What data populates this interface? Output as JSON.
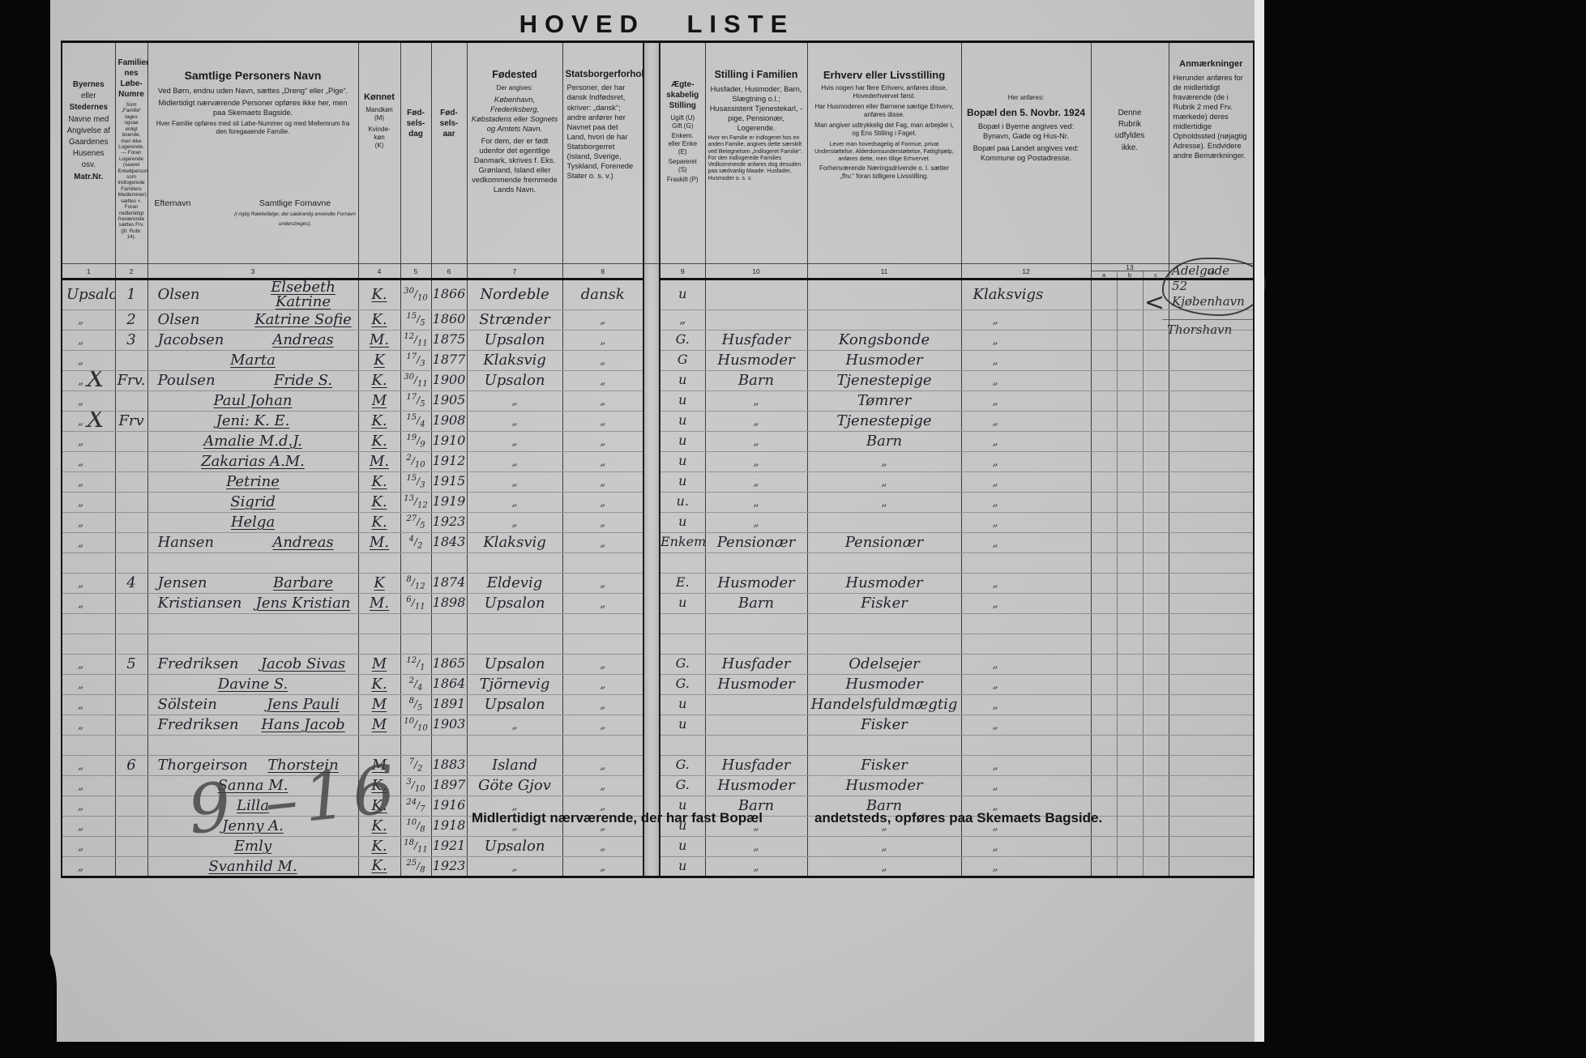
{
  "title": "HOVED LISTE",
  "colors": {
    "paper": "#c5c5c5",
    "ink": "#1b1b1b",
    "handwriting": "#23242c",
    "pencil": "#4f4f4f"
  },
  "h": {
    "place": {
      "lines": [
        "Byernes",
        "eller",
        "Stedernes",
        "Navne med",
        "Angivelse af",
        "Gaardenes",
        "Husenes osv.",
        "Matr.Nr."
      ]
    },
    "fam": {
      "title_lines": [
        "Familier-",
        "nes",
        "Løbe-",
        "Numre"
      ],
      "note": "Som „Familie“ tages ogsaa enligt boende, men ikke Logerende. — Foran Logerende (saavel Enkeltpersoner som indlogerede Familiers Medlemmer) sættes ×. Foran midlertidigt fraværende sættes Frv. (jfr. Rubr. 14)."
    },
    "name": {
      "title": "Samtlige Personers Navn",
      "p1": "Ved Børn, endnu uden Navn, sættes „Dreng“ eller „Pige“.",
      "p2": "Midlertidigt nærværende Personer opføres ikke her, men paa Skemaets Bagside.",
      "p3": "Hver Familie opføres med sit Løbe-Nummer og med Mellemrum fra den foregaaende Familie.",
      "sub_last": "Efternavn",
      "sub_first": "Samtlige Fornavne",
      "sub_first_note": "(i rigtig Rækkefølge; det sædvanlig anvendte Fornavn understreges)."
    },
    "sex": {
      "title": "Kønnet",
      "l1": "Mandkøn",
      "l2": "(M)",
      "l3": "Kvinde-",
      "l4": "køn",
      "l5": "(K)"
    },
    "day": {
      "lines": [
        "Fød-",
        "sels-",
        "dag"
      ]
    },
    "year": {
      "lines": [
        "Fød-",
        "sels-",
        "aar"
      ]
    },
    "birthplace": {
      "title": "Fødested",
      "p1": "Der angives:",
      "p2": "København, Frederiksberg, Købstadens eller Sognets og Amtets Navn.",
      "p3": "For dem, der er født udenfor det egentlige Danmark, skrives f. Eks. Grønland, Island eller vedkommende fremmede Lands Navn."
    },
    "citizen": {
      "title": "Statsborgerforhold",
      "p1": "Personer, der har dansk Indfødsret, skriver: „dansk“; andre anfører her Navnet paa det Land, hvori de har Statsborgerret (Island, Sverige, Tyskland, Forenede Stater o. s. v.)"
    },
    "marital": {
      "t1": "Ægte-",
      "t2": "skabelig",
      "t3": "Stilling",
      "l1": "Ugift (U)",
      "l2": "Gift (G)",
      "l3": "Enkem.",
      "l4": "eller Enke",
      "l5": "(E)",
      "l6": "Separeret",
      "l7": "(S)",
      "l8": "Fraskilt (P)"
    },
    "family": {
      "title": "Stilling i Familien",
      "p1": "Husfader, Husmoder; Barn, Slægtning o.l.; Husassistent Tjenestekarl, -pige, Pensionær, Logerende.",
      "p2": "Hvor en Familie er indlogeret hos en anden Familie, angives dette særskilt ved Betegnelsen „Indlogeret Familie“. For den indlogerede Families Vedkommende anføres dog desuden paa sædvanlig Maade: Husfader, Husmoder o. s. v."
    },
    "occupation": {
      "title": "Erhverv eller Livsstilling",
      "p1": "Hvis nogen har flere Erhverv, anføres disse, Hovederhvervet først.",
      "p2": "Har Husmoderen eller Børnene særlige Erhverv, anføres disse.",
      "p3": "Man angiver udtrykkelig det Fag, man arbejder i, og Ens Stilling i Faget.",
      "p4": "Lever man hovedsagelig af Formue, privat Understøttelse, Alderdomsunderstøttelse, Fattighjælp, anføres dette, men tillige Erhvervet.",
      "p5": "Forhenværende Næringsdrivende o. l. sætter „fhv.“ foran tidligere Livsstilling."
    },
    "residence": {
      "p0": "Her anføres:",
      "title": "Bopæl den 5. Novbr. 1924",
      "p1": "Bopæl i Byerne angives ved: Bynavn, Gade og Hus-Nr.",
      "p2": "Bopæl paa Landet angives ved: Kommune og Postadresse."
    },
    "blank": {
      "lines": [
        "Denne",
        "Rubrik",
        "udfyldes",
        "ikke."
      ]
    },
    "remarks": {
      "title": "Anmærkninger",
      "p1": "Herunder anføres for de midlertidigt fraværende (de i Rubrik 2 med Frv. mærkede) deres midlertidige Opholdssted (nøjagtig Adresse). Endvidere andre Bemærkninger."
    }
  },
  "colnums": [
    "1",
    "2",
    "3",
    "4",
    "5",
    "6",
    "7",
    "8",
    "9",
    "10",
    "11",
    "12",
    "13",
    "14"
  ],
  "sub13": [
    "a",
    "b",
    "c"
  ],
  "rows": [
    {
      "place": "Upsalon",
      "mark": "",
      "fam": "1",
      "surname": "Olsen",
      "given": "Elsebeth Katrine",
      "sex": "K.",
      "day": "30/10",
      "year": "1866",
      "birth": "Nordeble",
      "citizen": "dansk",
      "marital": "u",
      "family": "",
      "occupation": "",
      "residence": "Klaksvigs"
    },
    {
      "place": "„",
      "fam": "2",
      "surname": "Olsen",
      "given": "Katrine Sofie",
      "sex": "K.",
      "day": "15/5",
      "year": "1860",
      "birth": "Strænder",
      "citizen": "„",
      "marital": "„",
      "residence": "„"
    },
    {
      "place": "„",
      "fam": "3",
      "surname": "Jacobsen",
      "given": "Andreas",
      "sex": "M.",
      "day": "12/11",
      "year": "1875",
      "birth": "Upsalon",
      "citizen": "„",
      "marital": "G.",
      "family": "Husfader",
      "occupation": "Kongsbonde",
      "residence": "„"
    },
    {
      "place": "„",
      "given": "Marta",
      "sex": "K",
      "day": "17/3",
      "year": "1877",
      "birth": "Klaksvig",
      "citizen": "„",
      "marital": "G",
      "family": "Husmoder",
      "occupation": "Husmoder",
      "residence": "„"
    },
    {
      "place": "„",
      "mark": "X",
      "fam": "Frv.",
      "surname": "Poulsen",
      "given": "Fride S.",
      "sex": "K.",
      "day": "30/11",
      "year": "1900",
      "birth": "Upsalon",
      "citizen": "„",
      "marital": "u",
      "family": "Barn",
      "occupation": "Tjenestepige",
      "residence": "„"
    },
    {
      "place": "„",
      "given": "Paul Johan",
      "sex": "M",
      "day": "17/5",
      "year": "1905",
      "birth": "„",
      "citizen": "„",
      "marital": "u",
      "family": "„",
      "occupation": "Tømrer",
      "residence": "„"
    },
    {
      "place": "„",
      "mark": "X",
      "fam": "Frv",
      "given": "Jeni: K. E.",
      "sex": "K.",
      "day": "15/4",
      "year": "1908",
      "birth": "„",
      "citizen": "„",
      "marital": "u",
      "family": "„",
      "occupation": "Tjenestepige",
      "residence": "„"
    },
    {
      "place": "„",
      "given": "Amalie M.d.J.",
      "sex": "K.",
      "day": "19/9",
      "year": "1910",
      "birth": "„",
      "citizen": "„",
      "marital": "u",
      "family": "„",
      "occupation": "Barn",
      "residence": "„"
    },
    {
      "place": "„",
      "given": "Zakarias A.M.",
      "sex": "M.",
      "day": "2/10",
      "year": "1912",
      "birth": "„",
      "citizen": "„",
      "marital": "u",
      "family": "„",
      "occupation": "„",
      "residence": "„"
    },
    {
      "place": "„",
      "given": "Petrine",
      "sex": "K.",
      "day": "15/3",
      "year": "1915",
      "birth": "„",
      "citizen": "„",
      "marital": "u",
      "family": "„",
      "occupation": "„",
      "residence": "„"
    },
    {
      "place": "„",
      "given": "Sigrid",
      "sex": "K.",
      "day": "13/12",
      "year": "1919",
      "birth": "„",
      "citizen": "„",
      "marital": "u.",
      "family": "„",
      "occupation": "„",
      "residence": "„"
    },
    {
      "place": "„",
      "given": "Helga",
      "sex": "K.",
      "day": "27/5",
      "year": "1923",
      "birth": "„",
      "citizen": "„",
      "marital": "u",
      "family": "„",
      "residence": "„"
    },
    {
      "place": "„",
      "surname": "Hansen",
      "given": "Andreas",
      "sex": "M.",
      "day": "4/2",
      "year": "1843",
      "birth": "Klaksvig",
      "citizen": "„",
      "marital": "Enkem.",
      "family": "Pensionær",
      "occupation": "Pensionær",
      "residence": "„"
    },
    {},
    {
      "place": "„",
      "fam": "4",
      "surname": "Jensen",
      "given": "Barbare",
      "sex": "K",
      "day": "8/12",
      "year": "1874",
      "birth": "Eldevig",
      "citizen": "„",
      "marital": "E.",
      "family": "Husmoder",
      "occupation": "Husmoder",
      "residence": "„"
    },
    {
      "place": "„",
      "surname": "Kristiansen",
      "given": "Jens Kristian",
      "sex": "M.",
      "day": "6/11",
      "year": "1898",
      "birth": "Upsalon",
      "citizen": "„",
      "marital": "u",
      "family": "Barn",
      "occupation": "Fisker",
      "residence": "„"
    },
    {},
    {},
    {
      "place": "„",
      "fam": "5",
      "surname": "Fredriksen",
      "given": "Jacob Sivas",
      "sex": "M",
      "day": "12/1",
      "year": "1865",
      "birth": "Upsalon",
      "citizen": "„",
      "marital": "G.",
      "family": "Husfader",
      "occupation": "Odelsejer",
      "residence": "„"
    },
    {
      "place": "„",
      "given": "Davine S.",
      "sex": "K.",
      "day": "2/4",
      "year": "1864",
      "birth": "Tjörnevig",
      "citizen": "„",
      "marital": "G.",
      "family": "Husmoder",
      "occupation": "Husmoder",
      "residence": "„"
    },
    {
      "place": "„",
      "surname": "Sölstein",
      "given": "Jens Pauli",
      "sex": "M",
      "day": "8/5",
      "year": "1891",
      "birth": "Upsalon",
      "citizen": "„",
      "marital": "u",
      "occupation": "Handelsfuldmægtig",
      "residence": "„"
    },
    {
      "place": "„",
      "surname": "Fredriksen",
      "given": "Hans Jacob",
      "sex": "M",
      "day": "10/10",
      "year": "1903",
      "birth": "„",
      "citizen": "„",
      "marital": "u",
      "occupation": "Fisker",
      "residence": "„"
    },
    {},
    {
      "place": "„",
      "fam": "6",
      "surname": "Thorgeirson",
      "given": "Thorstein",
      "sex": "M",
      "day": "7/2",
      "year": "1883",
      "birth": "Island",
      "citizen": "„",
      "marital": "G.",
      "family": "Husfader",
      "occupation": "Fisker",
      "residence": "„"
    },
    {
      "place": "„",
      "given": "Sanna M.",
      "sex": "K.",
      "day": "3/10",
      "year": "1897",
      "birth": "Göte Gjov",
      "citizen": "„",
      "marital": "G.",
      "family": "Husmoder",
      "occupation": "Husmoder",
      "residence": "„"
    },
    {
      "place": "„",
      "given": "Lilla",
      "sex": "K.",
      "day": "24/7",
      "year": "1916",
      "birth": "„",
      "citizen": "„",
      "marital": "u",
      "family": "Barn",
      "occupation": "Barn",
      "residence": "„"
    },
    {
      "place": "„",
      "given": "Jenny A.",
      "sex": "K.",
      "day": "10/8",
      "year": "1918",
      "birth": "„",
      "citizen": "„",
      "marital": "u",
      "family": "„",
      "occupation": "„",
      "residence": "„"
    },
    {
      "place": "„",
      "given": "Emly",
      "sex": "K.",
      "day": "18/11",
      "year": "1921",
      "birth": "Upsalon",
      "citizen": "„",
      "marital": "u",
      "family": "„",
      "occupation": "„",
      "residence": "„"
    },
    {
      "place": "„",
      "given": "Svanhild M.",
      "sex": "K.",
      "day": "25/8",
      "year": "1923",
      "birth": "„",
      "citizen": "„",
      "marital": "u",
      "family": "„",
      "occupation": "„",
      "residence": "„"
    }
  ],
  "notes": {
    "circle_lines": [
      "Adelgade",
      "52",
      "Kjøbenhavn"
    ],
    "below": "Thorshavn",
    "pencil": "9 –16"
  },
  "footer": {
    "left": "Midlertidigt nærværende, der har fast Bopæl",
    "right": "andetsteds, opføres paa Skemaets Bagside."
  }
}
